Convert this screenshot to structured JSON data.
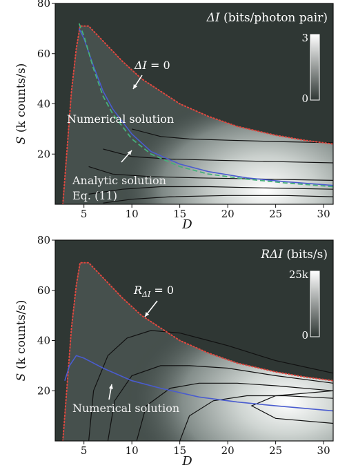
{
  "chart_data": [
    {
      "type": "heatmap",
      "title": "ΔI (bits/photon pair)",
      "xlabel": "D",
      "ylabel": "S (k counts/s)",
      "xlim": [
        2,
        31
      ],
      "ylim": [
        0,
        80
      ],
      "xticks": [
        5,
        10,
        15,
        20,
        25,
        30
      ],
      "yticks": [
        20,
        40,
        60,
        80
      ],
      "colorbar": {
        "min_label": "0",
        "max_label": "3",
        "min": 0,
        "max": 3
      },
      "zero_contour": {
        "name": "ΔI = 0",
        "x": [
          2.8,
          3.0,
          3.3,
          3.7,
          4.2,
          4.6,
          5.5,
          7,
          9,
          11,
          13,
          15,
          18,
          21,
          25,
          28,
          31
        ],
        "y": [
          0,
          10,
          25,
          45,
          62,
          71,
          71,
          65,
          57,
          50,
          45,
          40,
          35,
          31,
          27.5,
          25.5,
          24
        ]
      },
      "numerical_solution": {
        "name": "Numerical solution",
        "x": [
          4.5,
          5,
          6,
          7,
          8,
          10,
          12,
          15,
          18,
          22,
          26,
          31
        ],
        "y": [
          70,
          66,
          55,
          45,
          38,
          28,
          21,
          16,
          13,
          10.5,
          9,
          7.5
        ]
      },
      "analytic_solution": {
        "name": "Analytic solution Eq. (11)",
        "x": [
          4.5,
          5,
          6,
          7,
          8,
          10,
          12,
          15,
          18,
          22,
          26,
          31
        ],
        "y": [
          72,
          67,
          54,
          43,
          36,
          26,
          20,
          15,
          12,
          10,
          8.5,
          7
        ]
      },
      "contours": [
        {
          "x": [
            10,
            13,
            16,
            20,
            25,
            31
          ],
          "y": [
            30,
            27,
            26,
            25.5,
            25,
            24.5
          ]
        },
        {
          "x": [
            7,
            10,
            14,
            19,
            25,
            31
          ],
          "y": [
            22,
            19,
            18,
            17.5,
            17,
            16.5
          ]
        },
        {
          "x": [
            5.5,
            8,
            12,
            17,
            24,
            31
          ],
          "y": [
            15,
            12,
            11,
            10.5,
            10,
            9.5
          ]
        },
        {
          "x": [
            5.5,
            9,
            13,
            18,
            24,
            31
          ],
          "y": [
            4,
            6,
            7,
            7,
            6.5,
            6
          ]
        },
        {
          "x": [
            7,
            10,
            14,
            20,
            26,
            31
          ],
          "y": [
            0.5,
            2,
            3,
            3.5,
            3.5,
            3
          ]
        }
      ],
      "annotations": [
        "ΔI = 0",
        "Numerical solution",
        "Analytic solution",
        "Eq. (11)"
      ]
    },
    {
      "type": "heatmap",
      "title": "RΔI (bits/s)",
      "xlabel": "D",
      "ylabel": "S (k counts/s)",
      "xlim": [
        2,
        31
      ],
      "ylim": [
        0,
        80
      ],
      "xticks": [
        5,
        10,
        15,
        20,
        25,
        30
      ],
      "yticks": [
        20,
        40,
        60,
        80
      ],
      "colorbar": {
        "min_label": "0",
        "max_label": "25k",
        "min": 0,
        "max": 25000
      },
      "zero_contour": {
        "name": "RΔI = 0",
        "x": [
          2.8,
          3.0,
          3.3,
          3.7,
          4.2,
          4.6,
          5.5,
          7,
          9,
          11,
          13,
          15,
          18,
          21,
          25,
          28,
          31
        ],
        "y": [
          0,
          10,
          25,
          45,
          62,
          71,
          71,
          65,
          57,
          50,
          45,
          40,
          35,
          31,
          27.5,
          25.5,
          24
        ]
      },
      "numerical_solution": {
        "name": "Numerical solution",
        "x": [
          3.0,
          3.5,
          4.2,
          5,
          7,
          10,
          13,
          17,
          21,
          25,
          31
        ],
        "y": [
          24,
          30,
          34,
          33,
          29,
          24,
          21,
          17.5,
          15.5,
          14,
          12
        ]
      },
      "contours": [
        {
          "x": [
            5.5,
            6,
            7.5,
            9.5,
            12,
            15,
            18,
            20,
            25,
            31
          ],
          "y": [
            0,
            20,
            34,
            41,
            44,
            43,
            40,
            38,
            32,
            27
          ]
        },
        {
          "x": [
            7.5,
            8.2,
            10,
            13,
            16,
            20,
            25,
            31
          ],
          "y": [
            0,
            16,
            26,
            30,
            30,
            29,
            26,
            23
          ]
        },
        {
          "x": [
            10.5,
            11.5,
            14,
            17,
            21,
            25,
            31
          ],
          "y": [
            0,
            14,
            21,
            23,
            23,
            22,
            20
          ]
        },
        {
          "x": [
            15,
            16,
            18.5,
            22,
            26,
            31
          ],
          "y": [
            0,
            10,
            16,
            18,
            18,
            17
          ]
        },
        {
          "x": [
            31,
            25,
            22.5,
            25,
            31
          ],
          "y": [
            20,
            18,
            14,
            9,
            7
          ]
        }
      ],
      "annotations": [
        "RΔI = 0",
        "Numerical solution"
      ]
    }
  ]
}
